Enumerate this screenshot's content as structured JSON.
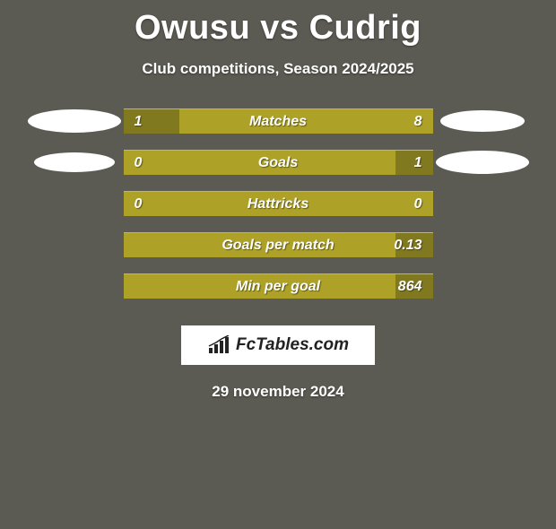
{
  "title": {
    "player1": "Owusu",
    "vs": "vs",
    "player2": "Cudrig"
  },
  "subtitle": "Club competitions, Season 2024/2025",
  "colors": {
    "background": "#5b5b53",
    "bar_bg": "#ada227",
    "bar_fill": "#807920",
    "marker_left": "#ffffff",
    "marker_right": "#ffffff",
    "text": "#ffffff"
  },
  "rows": [
    {
      "label": "Matches",
      "left_value": "1",
      "right_value": "8",
      "left_fill_pct": 18,
      "right_fill_pct": 0,
      "left_marker": {
        "w": 104,
        "h": 26
      },
      "right_marker": {
        "w": 94,
        "h": 24
      }
    },
    {
      "label": "Goals",
      "left_value": "0",
      "right_value": "1",
      "left_fill_pct": 0,
      "right_fill_pct": 12,
      "left_marker": {
        "w": 90,
        "h": 22
      },
      "right_marker": {
        "w": 104,
        "h": 26
      }
    },
    {
      "label": "Hattricks",
      "left_value": "0",
      "right_value": "0",
      "left_fill_pct": 0,
      "right_fill_pct": 0,
      "left_marker": null,
      "right_marker": null
    },
    {
      "label": "Goals per match",
      "left_value": "",
      "right_value": "0.13",
      "left_fill_pct": 0,
      "right_fill_pct": 12,
      "left_marker": null,
      "right_marker": null
    },
    {
      "label": "Min per goal",
      "left_value": "",
      "right_value": "864",
      "left_fill_pct": 0,
      "right_fill_pct": 12,
      "left_marker": null,
      "right_marker": null
    }
  ],
  "logo": {
    "text": "FcTables.com",
    "icon": "bar-chart-icon"
  },
  "date": "29 november 2024"
}
